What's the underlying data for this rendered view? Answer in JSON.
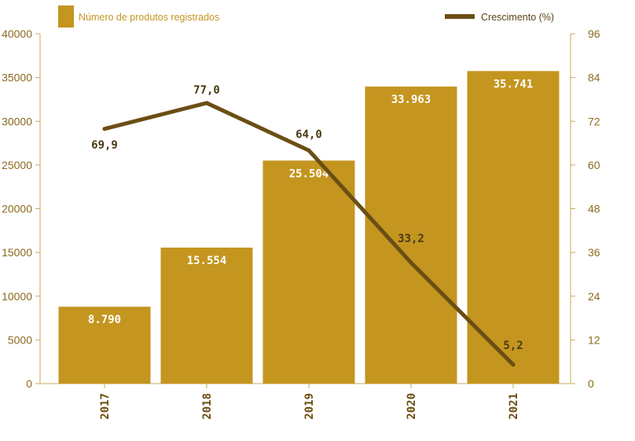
{
  "chart_data": {
    "type": "bar",
    "categories": [
      "2017",
      "2018",
      "2019",
      "2020",
      "2021"
    ],
    "series": [
      {
        "name": "Número de produtos registrados",
        "type": "bar",
        "axis": "left",
        "values": [
          8790,
          15554,
          25504,
          33963,
          35741
        ],
        "labels": [
          "8.790",
          "15.554",
          "25.504",
          "33.963",
          "35.741"
        ],
        "color": "#C4951F"
      },
      {
        "name": "Crescimento (%)",
        "type": "line",
        "axis": "right",
        "values": [
          69.9,
          77.0,
          64.0,
          33.2,
          5.2
        ],
        "labels": [
          "69,9",
          "77,0",
          "64,0",
          "33,2",
          "5,2"
        ],
        "color": "#6B4E14"
      }
    ],
    "y_left": {
      "ylim": [
        0,
        40000
      ],
      "ticks": [
        "0",
        "5000",
        "10000",
        "15000",
        "20000",
        "25000",
        "30000",
        "35000",
        "40000"
      ]
    },
    "y_right": {
      "ylim": [
        0,
        96
      ],
      "ticks": [
        "0",
        "12",
        "24",
        "36",
        "48",
        "60",
        "72",
        "84",
        "96"
      ]
    },
    "legend": {
      "bar_label": "Número de produtos registrados",
      "line_label": "Crescimento (%)",
      "placement": "top"
    },
    "grid": false,
    "title": "",
    "xlabel": "",
    "ylabel": ""
  }
}
